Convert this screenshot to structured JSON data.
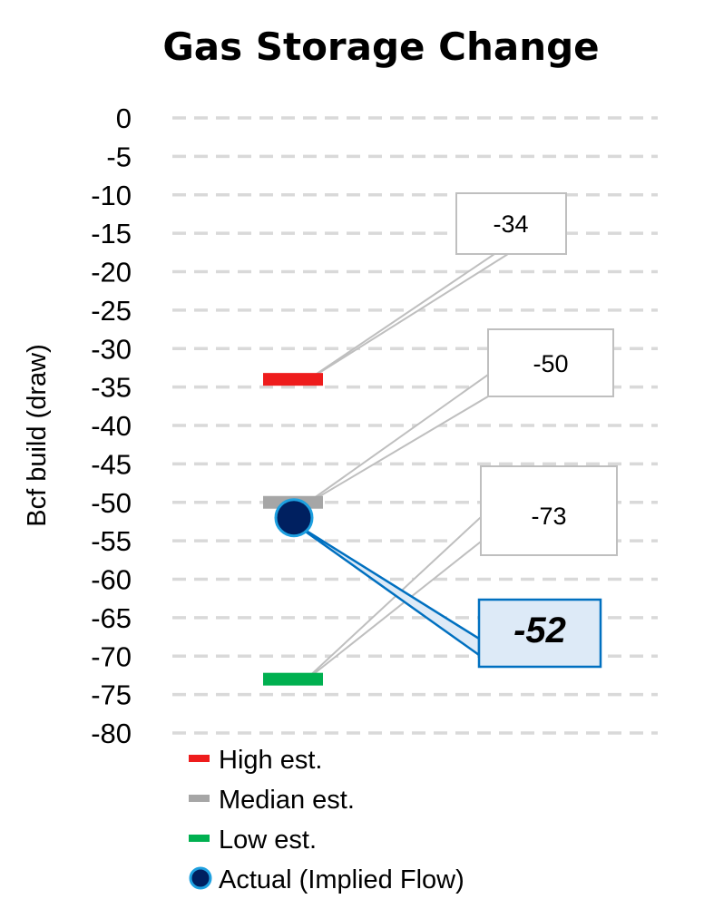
{
  "chart_data": {
    "type": "scatter",
    "title": "Gas Storage Change",
    "ylabel": "Bcf build (draw)",
    "xlabel": "",
    "ylim": [
      -80,
      0
    ],
    "ytick_step": 5,
    "yticks": [
      "0",
      "-5",
      "-10",
      "-15",
      "-20",
      "-25",
      "-30",
      "-35",
      "-40",
      "-45",
      "-50",
      "-55",
      "-60",
      "-65",
      "-70",
      "-75",
      "-80"
    ],
    "grid": "horizontal dashed",
    "legend_placement": "bottom-left",
    "series": [
      {
        "name": "High est.",
        "values": [
          -34
        ],
        "marker": "dash",
        "color": "#ee1c1c",
        "label": "-34"
      },
      {
        "name": "Median est.",
        "values": [
          -50
        ],
        "marker": "dash",
        "color": "#a6a6a6",
        "label": "-50"
      },
      {
        "name": "Low est.",
        "values": [
          -73
        ],
        "marker": "dash",
        "color": "#00b050",
        "label": "-73"
      },
      {
        "name": "Actual (Implied Flow)",
        "values": [
          -52
        ],
        "marker": "circle",
        "color": "#002060",
        "edge_color": "#1ea0e0",
        "label": "-52",
        "emphasized": true
      }
    ]
  }
}
